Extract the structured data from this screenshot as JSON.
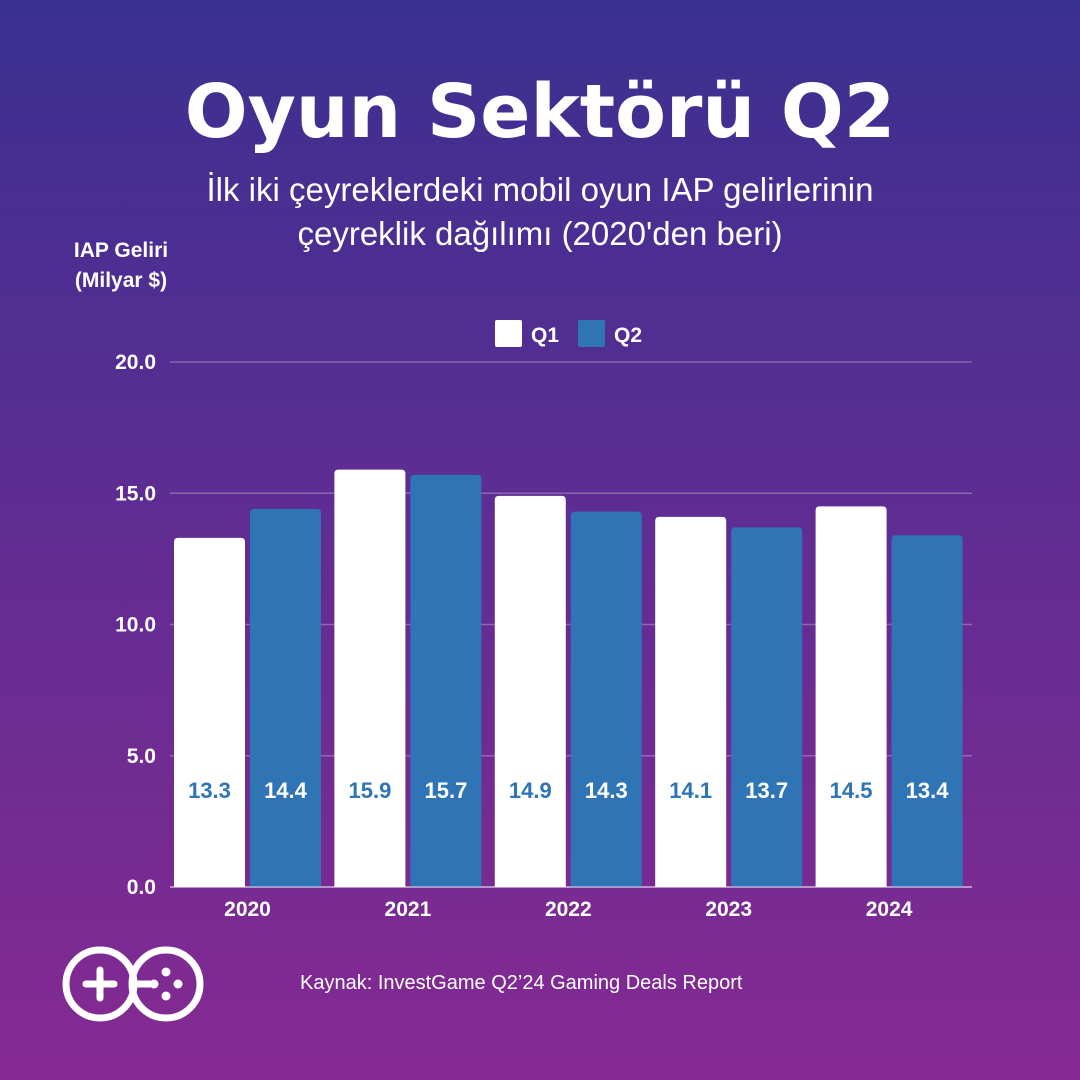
{
  "header": {
    "title": "Oyun Sektörü Q2",
    "subtitle_line1": "İlk iki çeyreklerdeki mobil oyun IAP gelirlerinin",
    "subtitle_line2": "çeyreklik dağılımı (2020'den beri)"
  },
  "footer": {
    "source": "Kaynak: InvestGame Q2’24 Gaming Deals Report",
    "logo_icon": "gamepad-logo-icon"
  },
  "colors": {
    "q1": "#ffffff",
    "q2": "#2f74b5",
    "label_text": "#2f74b5",
    "label_text_on_q2": "#ffffff"
  },
  "chart_data": {
    "type": "bar",
    "title": "Oyun Sektörü Q2",
    "ylabel_line1": "IAP Geliri",
    "ylabel_line2": "(Milyar $)",
    "xlabel": "",
    "categories": [
      "2020",
      "2021",
      "2022",
      "2023",
      "2024"
    ],
    "series": [
      {
        "name": "Q1",
        "values": [
          13.3,
          15.9,
          14.9,
          14.1,
          14.5
        ],
        "labels": [
          "13.3",
          "15.9",
          "14.9",
          "14.1",
          "14.5"
        ]
      },
      {
        "name": "Q2",
        "values": [
          14.4,
          15.7,
          14.3,
          13.7,
          13.4
        ],
        "labels": [
          "14.4",
          "15.7",
          "14.3",
          "13.7",
          "13.4"
        ]
      }
    ],
    "ylim": [
      0,
      20
    ],
    "yticks": [
      "0.0",
      "5.0",
      "10.0",
      "15.0",
      "20.0"
    ],
    "ytick_values": [
      0,
      5,
      10,
      15,
      20
    ],
    "grid": true,
    "legend_position": "top-center"
  }
}
